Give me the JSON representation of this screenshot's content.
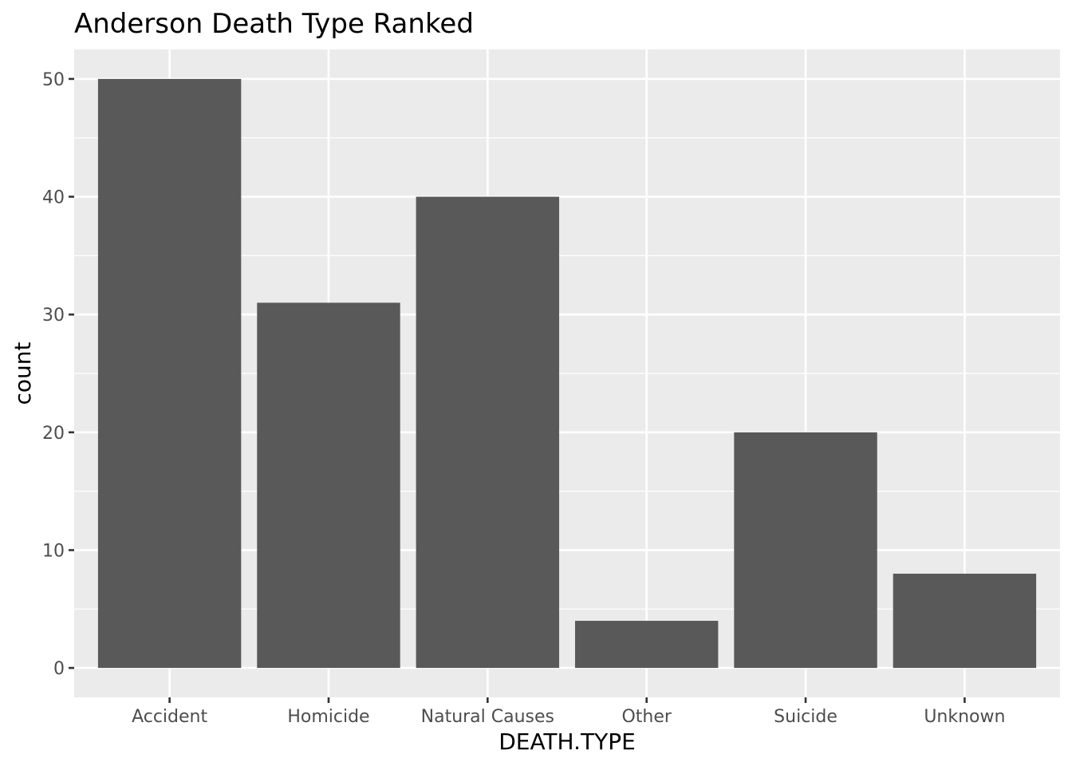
{
  "chart_data": {
    "type": "bar",
    "title": "Anderson Death Type Ranked",
    "xlabel": "DEATH.TYPE",
    "ylabel": "count",
    "categories": [
      "Accident",
      "Homicide",
      "Natural Causes",
      "Other",
      "Suicide",
      "Unknown"
    ],
    "values": [
      50,
      31,
      40,
      4,
      20,
      8
    ],
    "ylim": [
      -2.5,
      52.5
    ],
    "yticks": [
      0,
      10,
      20,
      30,
      40,
      50
    ],
    "grid": true,
    "legend": "none",
    "colors": {
      "bar": "#595959",
      "panel": "#EBEBEB",
      "grid": "#FFFFFF",
      "tick": "#333333",
      "tick_text": "#4D4D4D"
    }
  }
}
